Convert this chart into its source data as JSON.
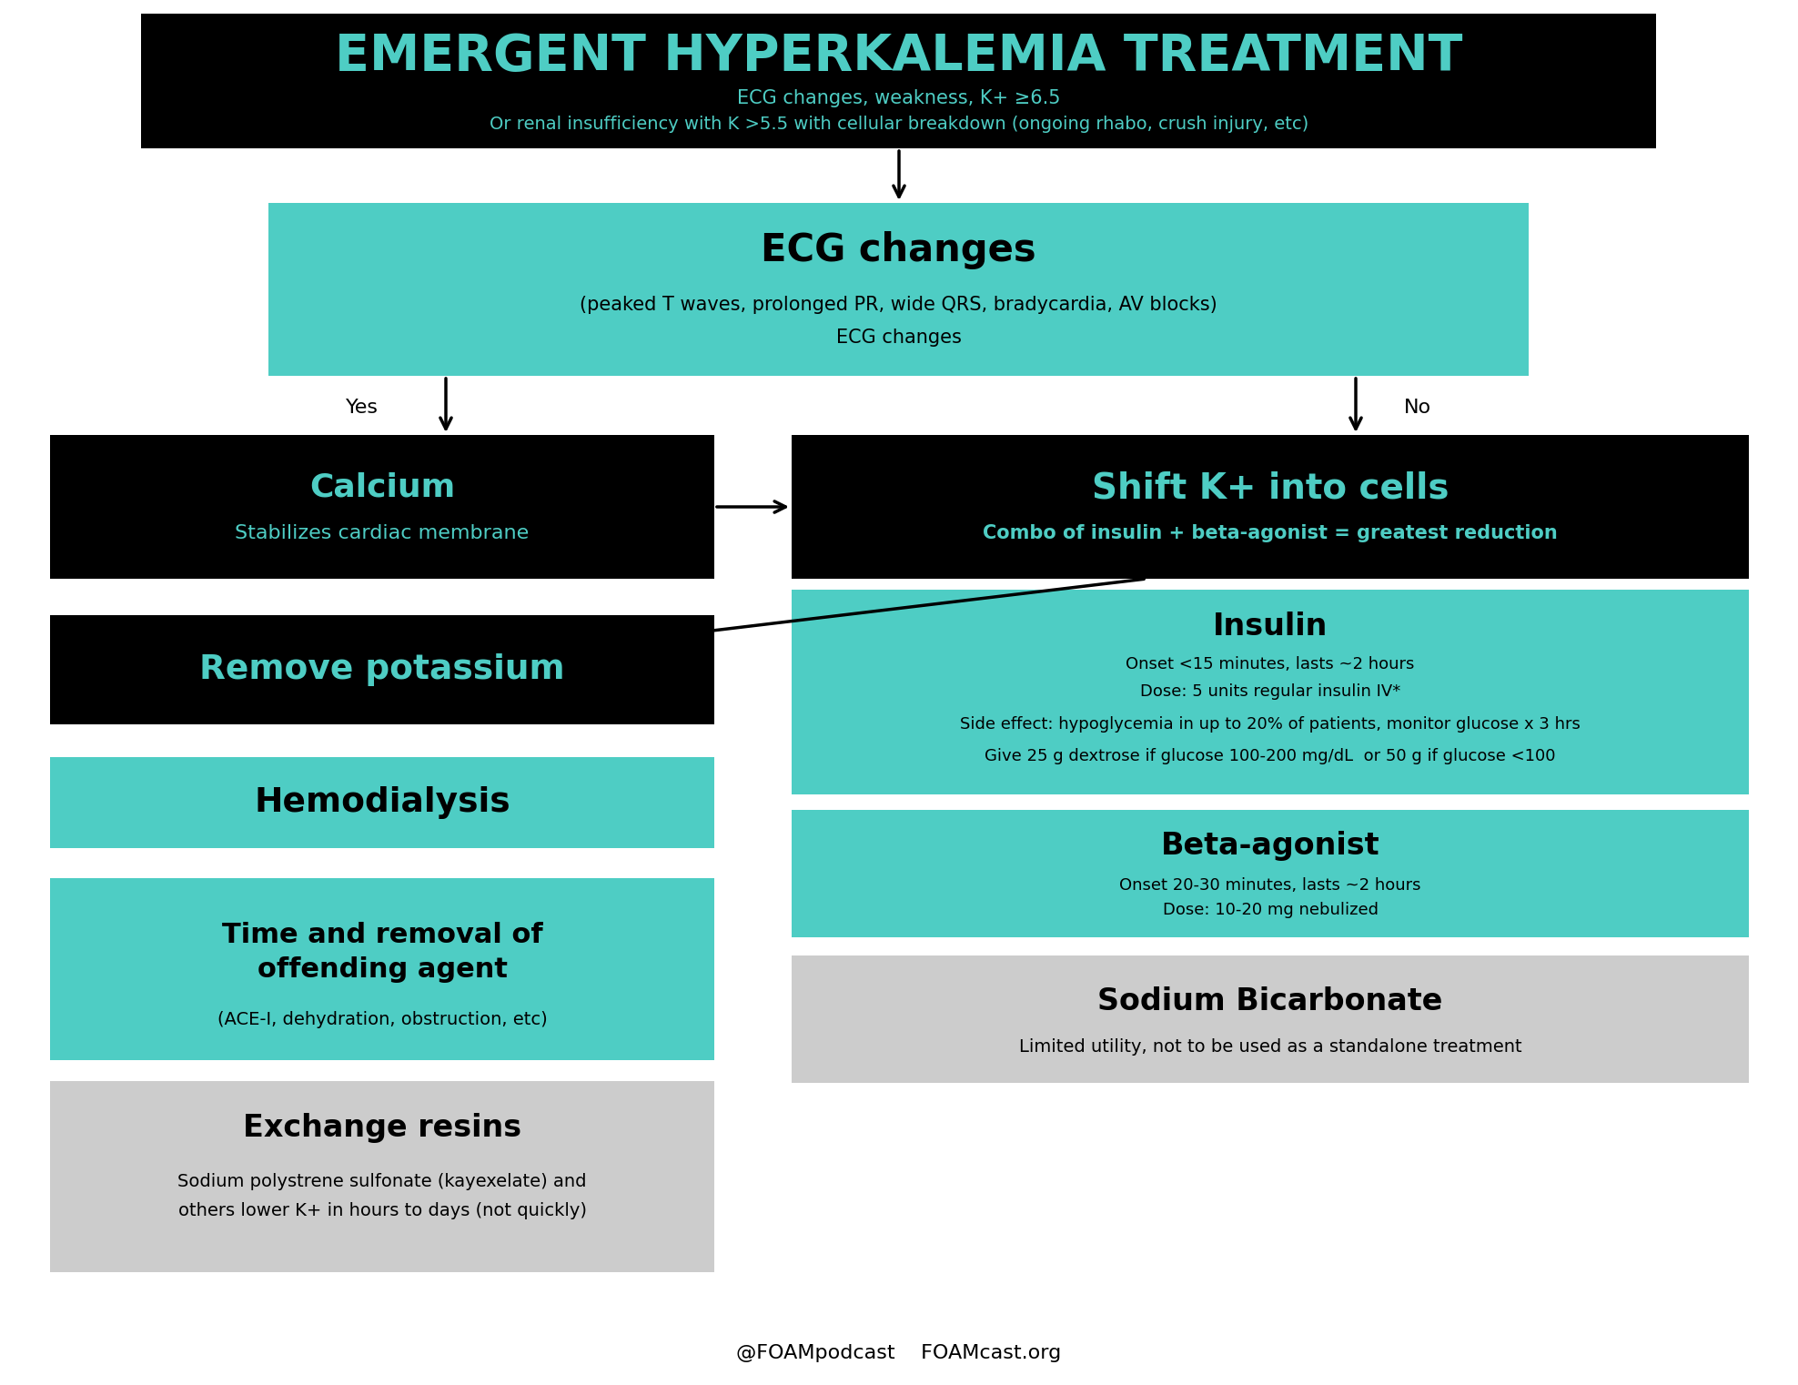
{
  "bg_color": "#ffffff",
  "teal": "#4ECDC4",
  "black": "#000000",
  "gray": "#cccccc",
  "title_text": "EMERGENT HYPERKALEMIA TREATMENT",
  "title_sub1": "ECG changes, weakness, K+ ≥6.5",
  "title_sub2": "Or renal insufficiency with K >5.5 with cellular breakdown (ongoing rhabo, crush injury, etc)",
  "ecg_title": "ECG changes",
  "ecg_sub1": "(peaked T waves, prolonged PR, wide QRS, bradycardia, AV blocks)",
  "ecg_sub2": "ECG changes",
  "calcium_title": "Calcium",
  "calcium_sub": "Stabilizes cardiac membrane",
  "shift_title": "Shift K+ into cells",
  "shift_sub": "Combo of insulin + beta-agonist = greatest reduction",
  "remove_title": "Remove potassium",
  "hemo_title": "Hemodialysis",
  "insulin_title": "Insulin",
  "insulin_line1": "Onset <15 minutes, lasts ~2 hours",
  "insulin_line2": "Dose: 5 units regular insulin IV*",
  "insulin_line3": "Side effect: hypoglycemia in up to 20% of patients, monitor glucose x 3 hrs",
  "insulin_line4": "Give 25 g dextrose if glucose 100-200 mg/dL  or 50 g if glucose <100",
  "beta_title": "Beta-agonist",
  "beta_line1": "Onset 20-30 minutes, lasts ~2 hours",
  "beta_line2": "Dose: 10-20 mg nebulized",
  "time_title_line1": "Time and removal of",
  "time_title_line2": "offending agent",
  "time_sub": "(ACE-I, dehydration, obstruction, etc)",
  "exchange_title": "Exchange resins",
  "exchange_line1": "Sodium polystrene sulfonate (kayexelate) and",
  "exchange_line2": "others lower K+ in hours to days (not quickly)",
  "bicarb_title": "Sodium Bicarbonate",
  "bicarb_sub": "Limited utility, not to be used as a standalone treatment",
  "yes_label": "Yes",
  "no_label": "No",
  "footer": "@FOAMpodcast    FOAMcast.org"
}
